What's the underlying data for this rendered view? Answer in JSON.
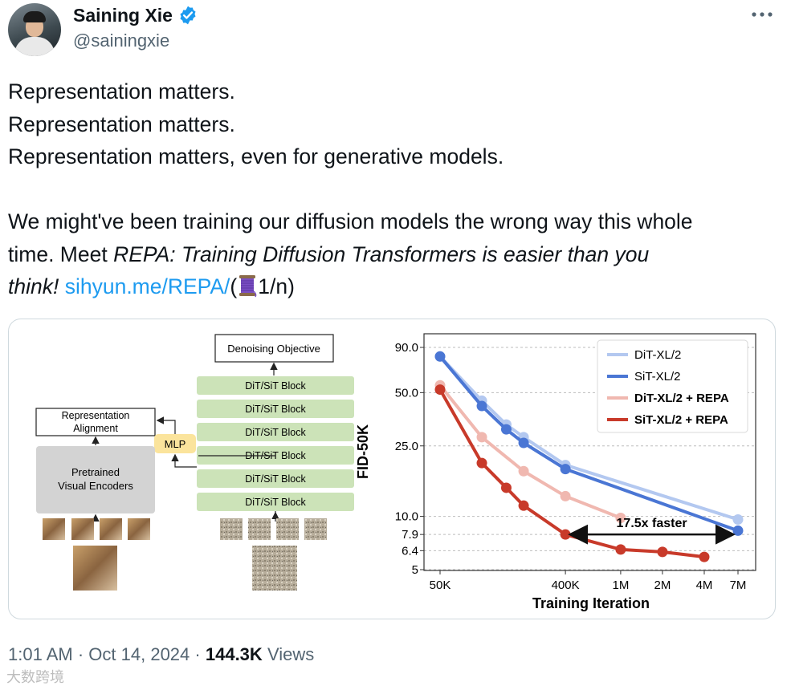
{
  "author": {
    "name": "Saining Xie",
    "handle": "@sainingxie",
    "verified_color": "#1d9bf0"
  },
  "tweet": {
    "lines": [
      "Representation matters.",
      "Representation matters.",
      "Representation matters, even for generative models."
    ],
    "para2_line1": "We might've been training our diffusion models the wrong way this whole",
    "para2_line2_pre": "time. Meet ",
    "para2_title_a": "REPA: Training Diffusion Transformers is easier than you",
    "para2_title_b": "think!",
    "link": "sihyun.me/REPA/",
    "thread_open": "(",
    "thread_icon": "spool-of-thread-icon",
    "thread_count": "1/n)"
  },
  "diagram": {
    "denoising_objective": "Denoising Objective",
    "block_label": "DiT/SiT Block",
    "representation_alignment": [
      "Representation",
      "Alignment"
    ],
    "mlp": "MLP",
    "pretrained_encoders": [
      "Pretrained",
      "Visual Encoders"
    ],
    "colors": {
      "block_fill": "#cce3b8",
      "mlp_fill": "#fbe49c",
      "encoder_fill": "#d3d3d3"
    }
  },
  "chart_data": {
    "type": "line",
    "xlabel": "Training Iteration",
    "ylabel": "FID-50K",
    "x_ticks": [
      "50K",
      "400K",
      "1M",
      "2M",
      "4M",
      "7M"
    ],
    "y_ticks": [
      "90.0",
      "50.0",
      "25.0",
      "10.0",
      "7.9",
      "6.4",
      "5"
    ],
    "x_scale": "log",
    "y_scale": "log",
    "xlim": [
      50000,
      7000000
    ],
    "ylim": [
      5,
      90
    ],
    "grid": true,
    "legend": "top-right",
    "series": [
      {
        "name": "DiT-XL/2",
        "color": "#b3c8f0",
        "x": [
          50000,
          100000,
          150000,
          200000,
          400000,
          7000000
        ],
        "y": [
          80,
          45,
          33,
          28,
          19.5,
          9.6
        ]
      },
      {
        "name": "SiT-XL/2",
        "color": "#4a76d4",
        "x": [
          50000,
          100000,
          150000,
          200000,
          400000,
          7000000
        ],
        "y": [
          80,
          42,
          31,
          26,
          18.5,
          8.3
        ]
      },
      {
        "name": "DiT-XL/2 + REPA",
        "color": "#f0b8b0",
        "x": [
          50000,
          100000,
          200000,
          400000,
          1000000
        ],
        "y": [
          55,
          28,
          18,
          13,
          9.8
        ]
      },
      {
        "name": "SiT-XL/2 + REPA",
        "color": "#c83a2a",
        "x": [
          50000,
          100000,
          150000,
          200000,
          400000,
          1000000,
          2000000,
          4000000
        ],
        "y": [
          52,
          20,
          14.5,
          11.5,
          7.9,
          6.5,
          6.3,
          5.9
        ]
      }
    ],
    "annotation": "17.5x faster"
  },
  "footer": {
    "time": "1:01 AM",
    "sep": "·",
    "date": "Oct 14, 2024",
    "views_count": "144.3K",
    "views_label": "Views"
  },
  "watermark": "大数跨境"
}
